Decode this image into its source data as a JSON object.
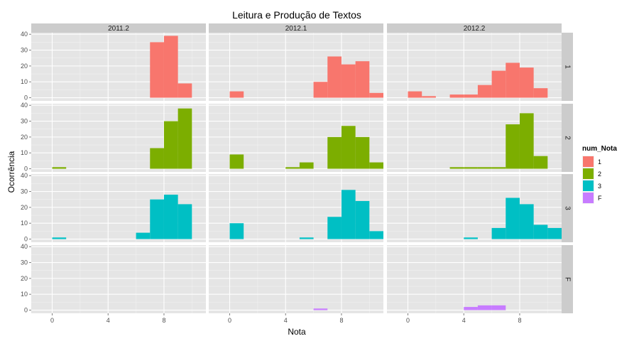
{
  "chart_data": {
    "type": "bar",
    "title": "Leitura e Produção de Textos",
    "xlabel": "Nota",
    "ylabel": "Ocorrência",
    "xlim": [
      -1.5,
      11
    ],
    "ylim": [
      -2,
      41
    ],
    "x_ticks": [
      0,
      4,
      8
    ],
    "y_ticks": [
      0,
      10,
      20,
      30,
      40
    ],
    "bin_width": 1,
    "grid": true,
    "columns": [
      "2011.2",
      "2012.1",
      "2012.2"
    ],
    "rows": [
      "1",
      "2",
      "3",
      "F"
    ],
    "legend": {
      "title": "num_Nota",
      "position": "right",
      "items": [
        {
          "label": "1",
          "color": "#F8766D"
        },
        {
          "label": "2",
          "color": "#7CAE00"
        },
        {
          "label": "3",
          "color": "#00BFC4"
        },
        {
          "label": "F",
          "color": "#C77CFF"
        }
      ]
    },
    "panels": [
      {
        "column": "2011.2",
        "row": "1",
        "bins": [
          {
            "x": 7,
            "y": 35
          },
          {
            "x": 8,
            "y": 39
          },
          {
            "x": 9,
            "y": 9
          }
        ]
      },
      {
        "column": "2012.1",
        "row": "1",
        "bins": [
          {
            "x": 0,
            "y": 4
          },
          {
            "x": 6,
            "y": 10
          },
          {
            "x": 7,
            "y": 26
          },
          {
            "x": 8,
            "y": 21
          },
          {
            "x": 9,
            "y": 23
          },
          {
            "x": 10,
            "y": 3
          }
        ]
      },
      {
        "column": "2012.2",
        "row": "1",
        "bins": [
          {
            "x": 0,
            "y": 4
          },
          {
            "x": 1,
            "y": 1
          },
          {
            "x": 3,
            "y": 2
          },
          {
            "x": 4,
            "y": 2
          },
          {
            "x": 5,
            "y": 8
          },
          {
            "x": 6,
            "y": 17
          },
          {
            "x": 7,
            "y": 22
          },
          {
            "x": 8,
            "y": 19
          },
          {
            "x": 9,
            "y": 6
          }
        ]
      },
      {
        "column": "2011.2",
        "row": "2",
        "bins": [
          {
            "x": 0,
            "y": 1
          },
          {
            "x": 7,
            "y": 13
          },
          {
            "x": 8,
            "y": 30
          },
          {
            "x": 9,
            "y": 38
          }
        ]
      },
      {
        "column": "2012.1",
        "row": "2",
        "bins": [
          {
            "x": 0,
            "y": 9
          },
          {
            "x": 4,
            "y": 1
          },
          {
            "x": 5,
            "y": 4
          },
          {
            "x": 7,
            "y": 20
          },
          {
            "x": 8,
            "y": 27
          },
          {
            "x": 9,
            "y": 20
          },
          {
            "x": 10,
            "y": 4
          }
        ]
      },
      {
        "column": "2012.2",
        "row": "2",
        "bins": [
          {
            "x": 3,
            "y": 1
          },
          {
            "x": 4,
            "y": 1
          },
          {
            "x": 5,
            "y": 1
          },
          {
            "x": 6,
            "y": 1
          },
          {
            "x": 7,
            "y": 28
          },
          {
            "x": 8,
            "y": 35
          },
          {
            "x": 9,
            "y": 8
          }
        ]
      },
      {
        "column": "2011.2",
        "row": "3",
        "bins": [
          {
            "x": 0,
            "y": 1
          },
          {
            "x": 6,
            "y": 4
          },
          {
            "x": 7,
            "y": 25
          },
          {
            "x": 8,
            "y": 28
          },
          {
            "x": 9,
            "y": 22
          }
        ]
      },
      {
        "column": "2012.1",
        "row": "3",
        "bins": [
          {
            "x": 0,
            "y": 10
          },
          {
            "x": 5,
            "y": 1
          },
          {
            "x": 7,
            "y": 14
          },
          {
            "x": 8,
            "y": 31
          },
          {
            "x": 9,
            "y": 24
          },
          {
            "x": 10,
            "y": 5
          }
        ]
      },
      {
        "column": "2012.2",
        "row": "3",
        "bins": [
          {
            "x": 4,
            "y": 1
          },
          {
            "x": 6,
            "y": 7
          },
          {
            "x": 7,
            "y": 26
          },
          {
            "x": 8,
            "y": 22
          },
          {
            "x": 9,
            "y": 9
          },
          {
            "x": 10,
            "y": 7
          }
        ]
      },
      {
        "column": "2011.2",
        "row": "F",
        "bins": []
      },
      {
        "column": "2012.1",
        "row": "F",
        "bins": [
          {
            "x": 6,
            "y": 1
          }
        ]
      },
      {
        "column": "2012.2",
        "row": "F",
        "bins": [
          {
            "x": 4,
            "y": 2
          },
          {
            "x": 5,
            "y": 3
          },
          {
            "x": 6,
            "y": 3
          }
        ]
      }
    ]
  }
}
